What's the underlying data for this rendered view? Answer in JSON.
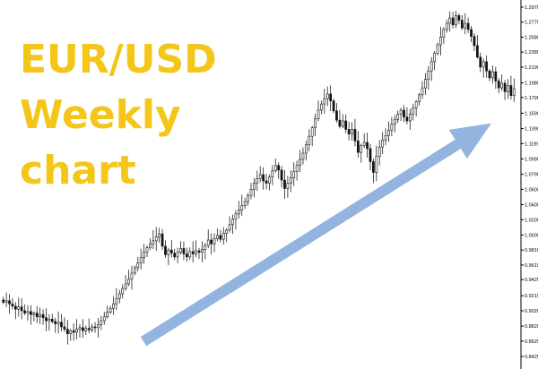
{
  "chart_data": {
    "type": "candlestick",
    "title_lines": [
      "EUR/USD",
      "Weekly",
      "chart"
    ],
    "xlabel": "",
    "ylabel": "",
    "ylim": [
      0.8425,
      1.297
    ],
    "ytick_labels": [
      "1.2970",
      "1.2775",
      "1.2580",
      "1.2385",
      "1.2190",
      "1.1985",
      "1.1795",
      "1.1590",
      "1.1390",
      "1.1195",
      "1.0995",
      "1.0795",
      "1.0600",
      "1.0400",
      "1.0205",
      "1.0005",
      "0.9810",
      "0.9615",
      "0.9425",
      "0.9215",
      "0.9020",
      "0.8820",
      "0.8625",
      "0.8425"
    ],
    "grid": false,
    "candle_colors": {
      "bull": "#ffffff",
      "bear": "#111111",
      "wick": "#222222"
    },
    "arrow": {
      "color": "#94b4e0",
      "from_value": 0.862,
      "to_value": 1.146,
      "direction": "up"
    },
    "closes": [
      0.913,
      0.915,
      0.911,
      0.908,
      0.904,
      0.907,
      0.902,
      0.899,
      0.901,
      0.897,
      0.899,
      0.894,
      0.897,
      0.893,
      0.889,
      0.891,
      0.888,
      0.885,
      0.887,
      0.881,
      0.878,
      0.872,
      0.876,
      0.874,
      0.878,
      0.88,
      0.876,
      0.879,
      0.877,
      0.881,
      0.88,
      0.884,
      0.889,
      0.894,
      0.9,
      0.905,
      0.911,
      0.918,
      0.924,
      0.931,
      0.937,
      0.943,
      0.951,
      0.958,
      0.964,
      0.971,
      0.978,
      0.984,
      0.989,
      0.993,
      0.998,
      1.002,
      0.986,
      0.975,
      0.981,
      0.977,
      0.972,
      0.978,
      0.983,
      0.976,
      0.972,
      0.979,
      0.976,
      0.98,
      0.978,
      0.982,
      0.987,
      0.994,
      0.989,
      0.996,
      1.0,
      0.995,
      1.003,
      1.007,
      1.014,
      1.021,
      1.028,
      1.033,
      1.039,
      1.044,
      1.052,
      1.06,
      1.068,
      1.074,
      1.079,
      1.071,
      1.068,
      1.076,
      1.084,
      1.091,
      1.085,
      1.072,
      1.061,
      1.068,
      1.075,
      1.083,
      1.091,
      1.099,
      1.107,
      1.118,
      1.129,
      1.14,
      1.152,
      1.163,
      1.171,
      1.178,
      1.184,
      1.175,
      1.162,
      1.15,
      1.142,
      1.149,
      1.138,
      1.132,
      1.138,
      1.123,
      1.108,
      1.117,
      1.121,
      1.113,
      1.096,
      1.082,
      1.103,
      1.115,
      1.124,
      1.13,
      1.137,
      1.145,
      1.151,
      1.158,
      1.163,
      1.154,
      1.149,
      1.158,
      1.166,
      1.174,
      1.183,
      1.192,
      1.203,
      1.214,
      1.226,
      1.237,
      1.248,
      1.258,
      1.268,
      1.276,
      1.283,
      1.274,
      1.286,
      1.28,
      1.27,
      1.276,
      1.268,
      1.259,
      1.247,
      1.232,
      1.219,
      1.226,
      1.214,
      1.205,
      1.213,
      1.201,
      1.192,
      1.198,
      1.187,
      1.195,
      1.182,
      1.191
    ]
  }
}
